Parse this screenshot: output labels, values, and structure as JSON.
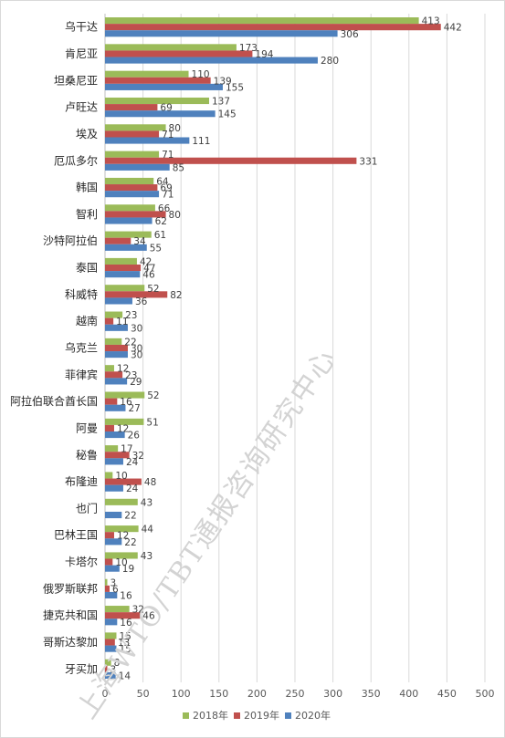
{
  "chart_data": {
    "type": "bar",
    "orientation": "horizontal",
    "title": "",
    "xlabel": "",
    "ylabel": "",
    "xlim": [
      0,
      500
    ],
    "xticks": [
      0,
      50,
      100,
      150,
      200,
      250,
      300,
      350,
      400,
      450,
      500
    ],
    "grid": true,
    "legend_position": "bottom",
    "categories": [
      "乌干达",
      "肯尼亚",
      "坦桑尼亚",
      "卢旺达",
      "埃及",
      "厄瓜多尔",
      "韩国",
      "智利",
      "沙特阿拉伯",
      "泰国",
      "科威特",
      "越南",
      "乌克兰",
      "菲律宾",
      "阿拉伯联合酋长国",
      "阿曼",
      "秘鲁",
      "布隆迪",
      "也门",
      "巴林王国",
      "卡塔尔",
      "俄罗斯联邦",
      "捷克共和国",
      "哥斯达黎加",
      "牙买加"
    ],
    "series": [
      {
        "name": "2018年",
        "color": "#9bbb59",
        "values": [
          413,
          173,
          110,
          137,
          80,
          71,
          64,
          66,
          61,
          42,
          52,
          23,
          22,
          12,
          52,
          51,
          17,
          10,
          43,
          44,
          43,
          3,
          32,
          15,
          8
        ]
      },
      {
        "name": "2019年",
        "color": "#c0504d",
        "values": [
          442,
          194,
          139,
          69,
          71,
          331,
          69,
          80,
          34,
          47,
          82,
          11,
          30,
          23,
          16,
          12,
          32,
          48,
          null,
          12,
          10,
          6,
          46,
          13,
          3
        ]
      },
      {
        "name": "2020年",
        "color": "#4f81bd",
        "values": [
          306,
          280,
          155,
          145,
          111,
          85,
          71,
          62,
          55,
          46,
          36,
          30,
          30,
          29,
          27,
          26,
          24,
          24,
          22,
          22,
          19,
          16,
          16,
          15,
          14
        ]
      }
    ]
  },
  "watermark": "上海WTO/TBT通报咨询研究中心"
}
